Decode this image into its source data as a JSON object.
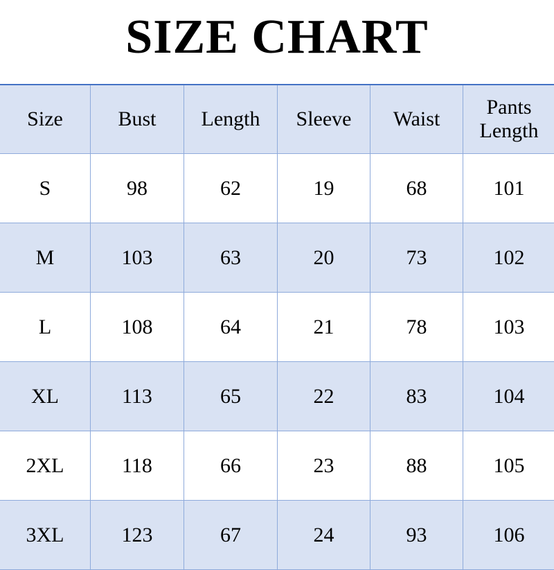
{
  "title": "SIZE CHART",
  "table": {
    "headers": [
      "Size",
      "Bust",
      "Length",
      "Sleeve",
      "Waist",
      "Pants Length"
    ],
    "rows": [
      [
        "S",
        "98",
        "62",
        "19",
        "68",
        "101"
      ],
      [
        "M",
        "103",
        "63",
        "20",
        "73",
        "102"
      ],
      [
        "L",
        "108",
        "64",
        "21",
        "78",
        "103"
      ],
      [
        "XL",
        "113",
        "65",
        "22",
        "83",
        "104"
      ],
      [
        "2XL",
        "118",
        "66",
        "23",
        "88",
        "105"
      ],
      [
        "3XL",
        "123",
        "67",
        "24",
        "93",
        "106"
      ]
    ]
  },
  "colors": {
    "header_fill": "#d9e2f3",
    "border": "#8eaadb",
    "top_border": "#4472c4"
  }
}
